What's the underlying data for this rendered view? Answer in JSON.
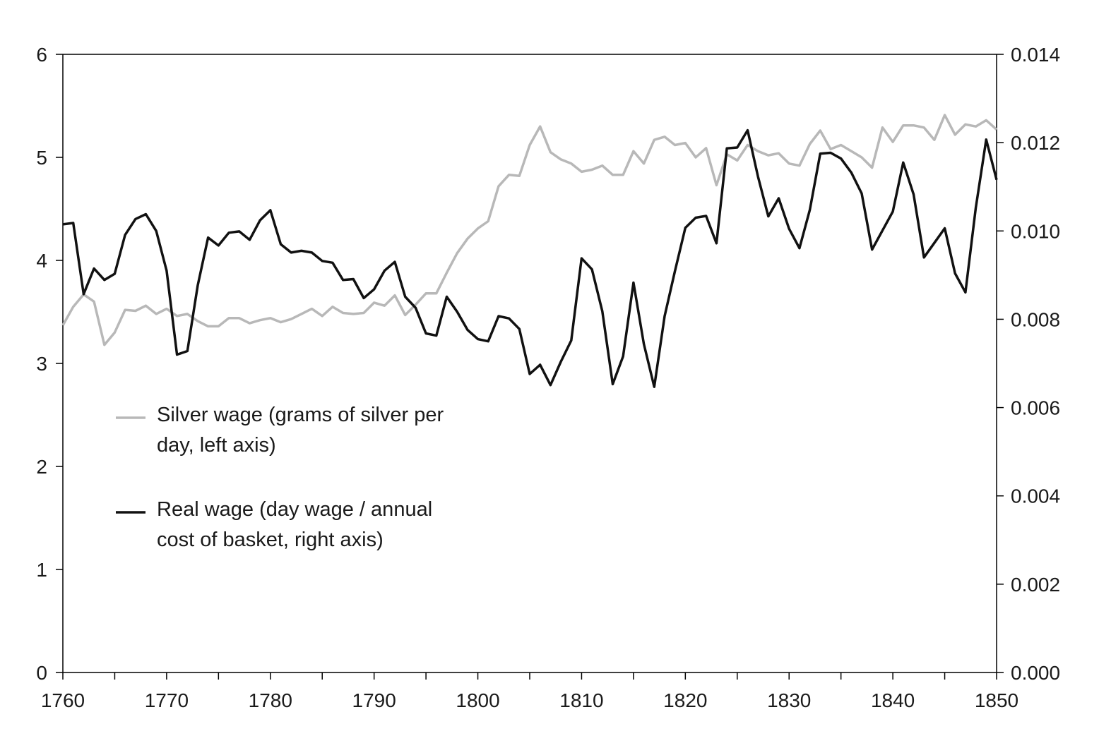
{
  "chart_data": {
    "type": "line",
    "x_range": [
      1760,
      1850
    ],
    "x_ticks": [
      "1760",
      "1770",
      "1780",
      "1790",
      "1800",
      "1810",
      "1820",
      "1830",
      "1840",
      "1850"
    ],
    "y_left": {
      "range": [
        0,
        6
      ],
      "ticks": [
        "0",
        "1",
        "2",
        "3",
        "4",
        "5",
        "6"
      ]
    },
    "y_right": {
      "range": [
        0,
        0.014
      ],
      "ticks": [
        "0.000",
        "0.002",
        "0.004",
        "0.006",
        "0.008",
        "0.010",
        "0.012",
        "0.014"
      ]
    },
    "legend": {
      "position": "middle-left"
    },
    "grid": false,
    "series": [
      {
        "name": "Silver wage (grams of silver per day, left axis)",
        "legend_lines": [
          "Silver wage (grams of silver per",
          "day, left axis)"
        ],
        "axis": "left",
        "color": "#b8b8b8",
        "x": [
          1760,
          1761,
          1762,
          1763,
          1764,
          1765,
          1766,
          1767,
          1768,
          1769,
          1770,
          1771,
          1772,
          1773,
          1774,
          1775,
          1776,
          1777,
          1778,
          1779,
          1780,
          1781,
          1782,
          1783,
          1784,
          1785,
          1786,
          1787,
          1788,
          1789,
          1790,
          1791,
          1792,
          1793,
          1794,
          1795,
          1796,
          1797,
          1798,
          1799,
          1800,
          1801,
          1802,
          1803,
          1804,
          1805,
          1806,
          1807,
          1808,
          1809,
          1810,
          1811,
          1812,
          1813,
          1814,
          1815,
          1816,
          1817,
          1818,
          1819,
          1820,
          1821,
          1822,
          1823,
          1824,
          1825,
          1826,
          1827,
          1828,
          1829,
          1830,
          1831,
          1832,
          1833,
          1834,
          1835,
          1836,
          1837,
          1838,
          1839,
          1840,
          1841,
          1842,
          1843,
          1844,
          1845,
          1846,
          1847,
          1848,
          1849,
          1850
        ],
        "values": [
          3.37,
          3.55,
          3.67,
          3.6,
          3.18,
          3.3,
          3.52,
          3.51,
          3.56,
          3.48,
          3.53,
          3.46,
          3.48,
          3.41,
          3.36,
          3.36,
          3.44,
          3.44,
          3.39,
          3.42,
          3.44,
          3.4,
          3.43,
          3.48,
          3.53,
          3.46,
          3.55,
          3.49,
          3.48,
          3.49,
          3.59,
          3.56,
          3.66,
          3.47,
          3.57,
          3.68,
          3.68,
          3.88,
          4.07,
          4.21,
          4.31,
          4.38,
          4.72,
          4.83,
          4.82,
          5.12,
          5.3,
          5.05,
          4.98,
          4.94,
          4.86,
          4.88,
          4.92,
          4.83,
          4.83,
          5.06,
          4.94,
          5.17,
          5.2,
          5.12,
          5.14,
          5.0,
          5.09,
          4.73,
          5.03,
          4.97,
          5.12,
          5.06,
          5.02,
          5.04,
          4.94,
          4.92,
          5.13,
          5.26,
          5.08,
          5.12,
          5.06,
          5.0,
          4.9,
          5.29,
          5.15,
          5.31,
          5.31,
          5.29,
          5.17,
          5.41,
          5.22,
          5.32,
          5.3,
          5.36,
          5.27
        ]
      },
      {
        "name": "Real wage (day wage / annual cost of basket, right axis)",
        "legend_lines": [
          "Real wage (day wage / annual",
          "cost of basket, right axis)"
        ],
        "axis": "right",
        "color": "#111111",
        "x": [
          1760,
          1761,
          1762,
          1763,
          1764,
          1765,
          1766,
          1767,
          1768,
          1769,
          1770,
          1771,
          1772,
          1773,
          1774,
          1775,
          1776,
          1777,
          1778,
          1779,
          1780,
          1781,
          1782,
          1783,
          1784,
          1785,
          1786,
          1787,
          1788,
          1789,
          1790,
          1791,
          1792,
          1793,
          1794,
          1795,
          1796,
          1797,
          1798,
          1799,
          1800,
          1801,
          1802,
          1803,
          1804,
          1805,
          1806,
          1807,
          1808,
          1809,
          1810,
          1811,
          1812,
          1813,
          1814,
          1815,
          1816,
          1817,
          1818,
          1819,
          1820,
          1821,
          1822,
          1823,
          1824,
          1825,
          1826,
          1827,
          1828,
          1829,
          1830,
          1831,
          1832,
          1833,
          1834,
          1835,
          1836,
          1837,
          1838,
          1839,
          1840,
          1841,
          1842,
          1843,
          1844,
          1845,
          1846,
          1847,
          1848,
          1849,
          1850
        ],
        "values": [
          0.01015,
          0.01018,
          0.00857,
          0.00915,
          0.00889,
          0.00903,
          0.00991,
          0.01027,
          0.01038,
          0.01,
          0.0091,
          0.0072,
          0.00728,
          0.00877,
          0.00985,
          0.00967,
          0.00996,
          0.00999,
          0.0098,
          0.01024,
          0.01047,
          0.0097,
          0.00951,
          0.00955,
          0.00951,
          0.00932,
          0.00928,
          0.00889,
          0.00891,
          0.00848,
          0.00868,
          0.0091,
          0.0093,
          0.00851,
          0.00826,
          0.00768,
          0.00763,
          0.00851,
          0.00817,
          0.00776,
          0.00755,
          0.0075,
          0.00807,
          0.00802,
          0.00778,
          0.00676,
          0.00697,
          0.00651,
          0.00704,
          0.00752,
          0.00938,
          0.00913,
          0.00818,
          0.00653,
          0.00716,
          0.00883,
          0.00744,
          0.00647,
          0.00807,
          0.00909,
          0.01007,
          0.0103,
          0.01034,
          0.00972,
          0.01187,
          0.01189,
          0.01228,
          0.01123,
          0.01033,
          0.01074,
          0.01005,
          0.00961,
          0.01048,
          0.01175,
          0.01177,
          0.01164,
          0.01132,
          0.01085,
          0.00958,
          0.01001,
          0.01044,
          0.01155,
          0.01083,
          0.0094,
          0.00973,
          0.01006,
          0.00904,
          0.00861,
          0.01053,
          0.01207,
          0.01116
        ]
      }
    ]
  }
}
